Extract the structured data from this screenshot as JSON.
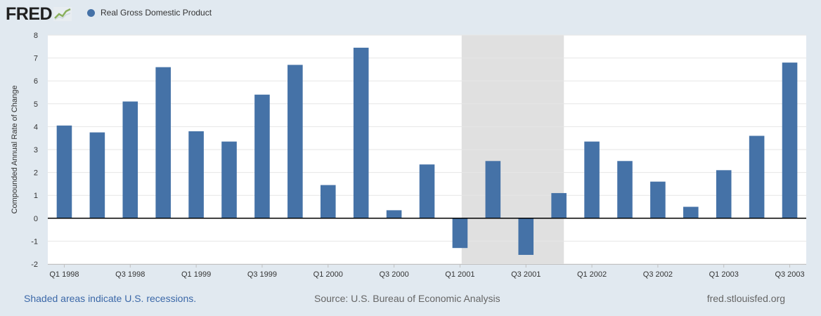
{
  "header": {
    "logo_text": "FRED",
    "legend_label": "Real Gross Domestic Product"
  },
  "colors": {
    "series": "#4572a7",
    "recession": "#e0e0e0",
    "background": "#e1e9f0",
    "plot": "#ffffff"
  },
  "footer": {
    "recession_note": "Shaded areas indicate U.S. recessions.",
    "source": "Source: U.S. Bureau of Economic Analysis",
    "site": "fred.stlouisfed.org"
  },
  "chart_data": {
    "type": "bar",
    "title": "",
    "series_name": "Real Gross Domestic Product",
    "xlabel": "",
    "ylabel": "Compounded Annual Rate of Change",
    "ylim": [
      -2,
      8
    ],
    "yticks": [
      "8",
      "7",
      "6",
      "5",
      "4",
      "3",
      "2",
      "1",
      "0",
      "-1",
      "-2"
    ],
    "categories": [
      "Q1 1998",
      "Q2 1998",
      "Q3 1998",
      "Q4 1998",
      "Q1 1999",
      "Q2 1999",
      "Q3 1999",
      "Q4 1999",
      "Q1 2000",
      "Q2 2000",
      "Q3 2000",
      "Q4 2000",
      "Q1 2001",
      "Q2 2001",
      "Q3 2001",
      "Q4 2001",
      "Q1 2002",
      "Q2 2002",
      "Q3 2002",
      "Q4 2002",
      "Q1 2003",
      "Q2 2003",
      "Q3 2003"
    ],
    "values": [
      4.05,
      3.75,
      5.1,
      6.6,
      3.8,
      3.35,
      5.4,
      6.7,
      1.45,
      7.45,
      0.35,
      2.35,
      -1.3,
      2.5,
      -1.6,
      1.1,
      3.35,
      2.5,
      1.6,
      0.5,
      2.1,
      3.6,
      6.8
    ],
    "xtick_labels": [
      {
        "index": 0,
        "label": "Q1 1998"
      },
      {
        "index": 2,
        "label": "Q3 1998"
      },
      {
        "index": 4,
        "label": "Q1 1999"
      },
      {
        "index": 6,
        "label": "Q3 1999"
      },
      {
        "index": 8,
        "label": "Q1 2000"
      },
      {
        "index": 10,
        "label": "Q3 2000"
      },
      {
        "index": 12,
        "label": "Q1 2001"
      },
      {
        "index": 14,
        "label": "Q3 2001"
      },
      {
        "index": 16,
        "label": "Q1 2002"
      },
      {
        "index": 18,
        "label": "Q3 2002"
      },
      {
        "index": 20,
        "label": "Q1 2003"
      },
      {
        "index": 22,
        "label": "Q3 2003"
      }
    ],
    "recession": {
      "start": "Q2 2001",
      "end": "Q4 2001"
    },
    "grid": true,
    "legend": "top-left"
  }
}
